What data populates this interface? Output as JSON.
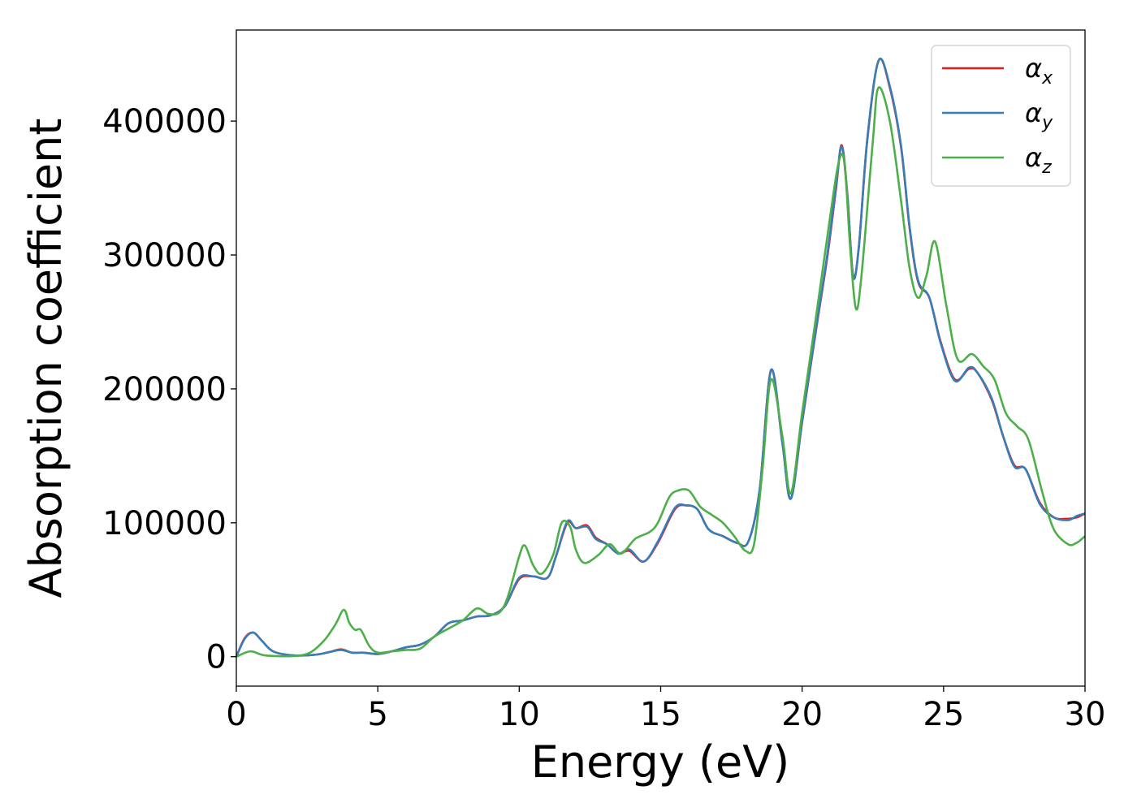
{
  "chart_data": {
    "type": "line",
    "title": "",
    "xlabel": "Energy (eV)",
    "ylabel": "Absorption coefficient",
    "xlim": [
      0,
      30
    ],
    "ylim": [
      -22000,
      468000
    ],
    "xticks": [
      0,
      5,
      10,
      15,
      20,
      25,
      30
    ],
    "yticks": [
      0,
      100000,
      200000,
      300000,
      400000
    ],
    "xtick_labels": [
      "0",
      "5",
      "10",
      "15",
      "20",
      "25",
      "30"
    ],
    "ytick_labels": [
      "0",
      "100000",
      "200000",
      "300000",
      "400000"
    ],
    "grid": false,
    "legend_position": "top-right",
    "series": [
      {
        "name": "α",
        "subscript": "x",
        "color": "#e41a1c",
        "points": [
          [
            0,
            0
          ],
          [
            0.3,
            14000
          ],
          [
            0.6,
            18000
          ],
          [
            0.9,
            12000
          ],
          [
            1.3,
            4000
          ],
          [
            2,
            1000
          ],
          [
            2.8,
            1500
          ],
          [
            3.3,
            3500
          ],
          [
            3.7,
            5500
          ],
          [
            4.1,
            3000
          ],
          [
            4.5,
            3000
          ],
          [
            5,
            2000
          ],
          [
            5.5,
            4000
          ],
          [
            6,
            7000
          ],
          [
            6.5,
            9000
          ],
          [
            7,
            15000
          ],
          [
            7.5,
            25000
          ],
          [
            8,
            27000
          ],
          [
            8.5,
            30000
          ],
          [
            9,
            31000
          ],
          [
            9.5,
            38000
          ],
          [
            10,
            58000
          ],
          [
            10.5,
            60000
          ],
          [
            11,
            59000
          ],
          [
            11.3,
            75000
          ],
          [
            11.7,
            100000
          ],
          [
            12,
            96000
          ],
          [
            12.4,
            98000
          ],
          [
            12.7,
            89000
          ],
          [
            13.1,
            84000
          ],
          [
            13.5,
            77000
          ],
          [
            13.9,
            79000
          ],
          [
            14.4,
            71000
          ],
          [
            14.9,
            85000
          ],
          [
            15.5,
            110000
          ],
          [
            15.9,
            113000
          ],
          [
            16.3,
            110000
          ],
          [
            16.7,
            95000
          ],
          [
            17.2,
            90000
          ],
          [
            17.7,
            85000
          ],
          [
            18.1,
            86000
          ],
          [
            18.5,
            125000
          ],
          [
            18.9,
            214000
          ],
          [
            19.3,
            160000
          ],
          [
            19.6,
            118000
          ],
          [
            20,
            175000
          ],
          [
            20.5,
            245000
          ],
          [
            20.9,
            300000
          ],
          [
            21.2,
            350000
          ],
          [
            21.4,
            382000
          ],
          [
            21.6,
            345000
          ],
          [
            21.8,
            285000
          ],
          [
            22,
            305000
          ],
          [
            22.3,
            385000
          ],
          [
            22.7,
            445000
          ],
          [
            23.1,
            425000
          ],
          [
            23.5,
            380000
          ],
          [
            23.8,
            320000
          ],
          [
            24.1,
            280000
          ],
          [
            24.5,
            268000
          ],
          [
            24.9,
            235000
          ],
          [
            25.4,
            207000
          ],
          [
            25.9,
            215000
          ],
          [
            26.2,
            212000
          ],
          [
            26.7,
            192000
          ],
          [
            27.1,
            165000
          ],
          [
            27.5,
            143000
          ],
          [
            27.9,
            140000
          ],
          [
            28.4,
            115000
          ],
          [
            28.9,
            104000
          ],
          [
            29.4,
            103000
          ],
          [
            29.7,
            104000
          ],
          [
            30,
            107000
          ]
        ]
      },
      {
        "name": "α",
        "subscript": "y",
        "color": "#377eb8",
        "points": [
          [
            0,
            0
          ],
          [
            0.3,
            13500
          ],
          [
            0.6,
            18000
          ],
          [
            0.9,
            12000
          ],
          [
            1.3,
            4000
          ],
          [
            2,
            1000
          ],
          [
            2.8,
            1500
          ],
          [
            3.3,
            3500
          ],
          [
            3.7,
            5000
          ],
          [
            4.1,
            3000
          ],
          [
            4.5,
            3000
          ],
          [
            5,
            2000
          ],
          [
            5.5,
            4000
          ],
          [
            6,
            7000
          ],
          [
            6.5,
            9000
          ],
          [
            7,
            15000
          ],
          [
            7.5,
            25000
          ],
          [
            8,
            27000
          ],
          [
            8.5,
            30000
          ],
          [
            9,
            31000
          ],
          [
            9.5,
            38000
          ],
          [
            10,
            59000
          ],
          [
            10.5,
            60000
          ],
          [
            11,
            59000
          ],
          [
            11.3,
            75000
          ],
          [
            11.7,
            101000
          ],
          [
            12,
            96000
          ],
          [
            12.4,
            97000
          ],
          [
            12.7,
            88000
          ],
          [
            13.1,
            84000
          ],
          [
            13.5,
            77000
          ],
          [
            13.9,
            80000
          ],
          [
            14.4,
            71000
          ],
          [
            14.9,
            86000
          ],
          [
            15.5,
            111000
          ],
          [
            15.9,
            113000
          ],
          [
            16.3,
            110000
          ],
          [
            16.7,
            95000
          ],
          [
            17.2,
            90000
          ],
          [
            17.7,
            85000
          ],
          [
            18.1,
            86000
          ],
          [
            18.5,
            125000
          ],
          [
            18.9,
            214000
          ],
          [
            19.3,
            160000
          ],
          [
            19.6,
            118000
          ],
          [
            20,
            176000
          ],
          [
            20.5,
            246000
          ],
          [
            20.9,
            302000
          ],
          [
            21.2,
            352000
          ],
          [
            21.4,
            381000
          ],
          [
            21.6,
            344000
          ],
          [
            21.8,
            284000
          ],
          [
            22,
            305000
          ],
          [
            22.3,
            386000
          ],
          [
            22.7,
            445000
          ],
          [
            23.1,
            426000
          ],
          [
            23.5,
            381000
          ],
          [
            23.8,
            321000
          ],
          [
            24.1,
            281000
          ],
          [
            24.5,
            268000
          ],
          [
            24.9,
            234000
          ],
          [
            25.4,
            206000
          ],
          [
            25.9,
            216000
          ],
          [
            26.2,
            212000
          ],
          [
            26.7,
            193000
          ],
          [
            27.1,
            165000
          ],
          [
            27.5,
            142000
          ],
          [
            27.9,
            140000
          ],
          [
            28.4,
            114000
          ],
          [
            28.9,
            104000
          ],
          [
            29.4,
            102000
          ],
          [
            29.7,
            105000
          ],
          [
            30,
            107000
          ]
        ]
      },
      {
        "name": "α",
        "subscript": "z",
        "color": "#4daf4a",
        "points": [
          [
            0,
            0
          ],
          [
            0.5,
            4000
          ],
          [
            1,
            1000
          ],
          [
            2,
            500
          ],
          [
            2.6,
            3000
          ],
          [
            3.1,
            12000
          ],
          [
            3.5,
            24000
          ],
          [
            3.8,
            35000
          ],
          [
            4,
            25000
          ],
          [
            4.2,
            20000
          ],
          [
            4.4,
            20000
          ],
          [
            4.7,
            8000
          ],
          [
            5,
            3000
          ],
          [
            5.5,
            4000
          ],
          [
            6,
            5000
          ],
          [
            6.5,
            6000
          ],
          [
            7,
            15000
          ],
          [
            7.5,
            21000
          ],
          [
            8,
            27000
          ],
          [
            8.5,
            36000
          ],
          [
            8.9,
            32000
          ],
          [
            9.3,
            33000
          ],
          [
            9.6,
            45000
          ],
          [
            10,
            75000
          ],
          [
            10.2,
            83000
          ],
          [
            10.5,
            68000
          ],
          [
            10.8,
            62000
          ],
          [
            11.2,
            76000
          ],
          [
            11.5,
            100000
          ],
          [
            11.8,
            97000
          ],
          [
            12,
            80000
          ],
          [
            12.3,
            70000
          ],
          [
            12.8,
            76000
          ],
          [
            13.2,
            84000
          ],
          [
            13.6,
            77000
          ],
          [
            14.1,
            88000
          ],
          [
            14.6,
            93000
          ],
          [
            14.9,
            100000
          ],
          [
            15.3,
            119000
          ],
          [
            15.6,
            124000
          ],
          [
            16,
            124000
          ],
          [
            16.4,
            112000
          ],
          [
            16.8,
            106000
          ],
          [
            17.2,
            100000
          ],
          [
            17.6,
            90000
          ],
          [
            18,
            79000
          ],
          [
            18.3,
            84000
          ],
          [
            18.6,
            140000
          ],
          [
            18.9,
            207000
          ],
          [
            19.3,
            165000
          ],
          [
            19.6,
            122000
          ],
          [
            20,
            182000
          ],
          [
            20.5,
            255000
          ],
          [
            21,
            330000
          ],
          [
            21.3,
            370000
          ],
          [
            21.5,
            368000
          ],
          [
            21.7,
            305000
          ],
          [
            21.9,
            260000
          ],
          [
            22.1,
            285000
          ],
          [
            22.5,
            385000
          ],
          [
            22.7,
            425000
          ],
          [
            23.1,
            400000
          ],
          [
            23.5,
            340000
          ],
          [
            23.8,
            290000
          ],
          [
            24.1,
            268000
          ],
          [
            24.4,
            285000
          ],
          [
            24.7,
            310000
          ],
          [
            25.1,
            262000
          ],
          [
            25.5,
            222000
          ],
          [
            26,
            226000
          ],
          [
            26.4,
            217000
          ],
          [
            26.8,
            207000
          ],
          [
            27.2,
            182000
          ],
          [
            27.6,
            172000
          ],
          [
            28,
            162000
          ],
          [
            28.5,
            122000
          ],
          [
            28.9,
            95000
          ],
          [
            29.4,
            84000
          ],
          [
            29.7,
            85000
          ],
          [
            30,
            90000
          ]
        ]
      }
    ]
  }
}
